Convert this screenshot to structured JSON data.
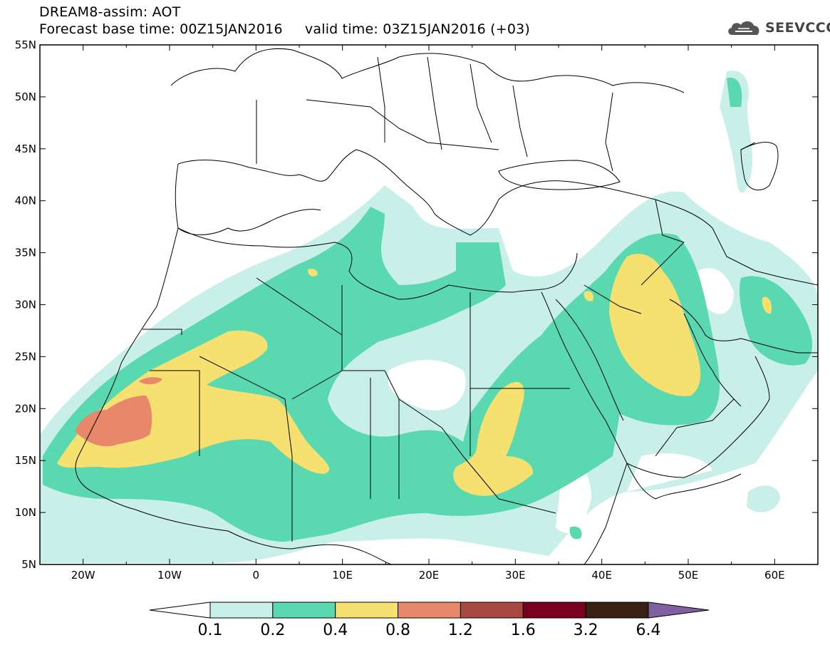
{
  "header": {
    "title_line1": "DREAM8-assim: AOT",
    "title_line2": "Forecast base time: 00Z15JAN2016     valid time: 03Z15JAN2016 (+03)"
  },
  "logo": {
    "text": "SEEVCCC",
    "icon": "cloud-icon"
  },
  "map": {
    "lat_labels": [
      "55N",
      "50N",
      "45N",
      "40N",
      "35N",
      "30N",
      "25N",
      "20N",
      "15N",
      "10N",
      "5N"
    ],
    "lon_labels": [
      "20W",
      "10W",
      "0",
      "10E",
      "20E",
      "30E",
      "40E",
      "50E",
      "60E"
    ],
    "lat_range": [
      5,
      55
    ],
    "lon_range": [
      -25,
      65
    ]
  },
  "colorbar": {
    "labels": [
      "0.1",
      "0.2",
      "0.4",
      "0.8",
      "1.2",
      "1.6",
      "3.2",
      "6.4"
    ],
    "colors": [
      "#ffffff",
      "#c8f0e8",
      "#5ad8b0",
      "#f5e070",
      "#e8886a",
      "#a84840",
      "#7a0020",
      "#3a2010",
      "#8060a0"
    ]
  },
  "colors": {
    "c1": "#c8f0e8",
    "c2": "#5ad8b0",
    "c3": "#f5e070",
    "c4": "#e8886a",
    "border": "#000000"
  }
}
